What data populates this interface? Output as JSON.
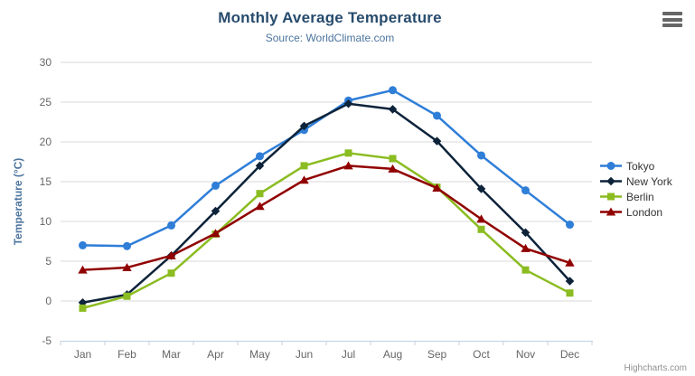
{
  "chart_data": {
    "type": "line",
    "title": "Monthly Average Temperature",
    "subtitle": "Source: WorldClimate.com",
    "credit": "Highcharts.com",
    "xlabel": "",
    "ylabel": "Temperature (°C)",
    "ylim": [
      -5,
      30
    ],
    "ytick_interval": 5,
    "grid": true,
    "legend_position": "right",
    "categories": [
      "Jan",
      "Feb",
      "Mar",
      "Apr",
      "May",
      "Jun",
      "Jul",
      "Aug",
      "Sep",
      "Oct",
      "Nov",
      "Dec"
    ],
    "series": [
      {
        "name": "Tokyo",
        "color": "#2f7ed8",
        "marker": "circle",
        "values": [
          7.0,
          6.9,
          9.5,
          14.5,
          18.2,
          21.5,
          25.2,
          26.5,
          23.3,
          18.3,
          13.9,
          9.6
        ]
      },
      {
        "name": "New York",
        "color": "#0d233a",
        "marker": "diamond",
        "values": [
          -0.2,
          0.8,
          5.7,
          11.3,
          17.0,
          22.0,
          24.8,
          24.1,
          20.1,
          14.1,
          8.6,
          2.5
        ]
      },
      {
        "name": "Berlin",
        "color": "#8bbc21",
        "marker": "square",
        "values": [
          -0.9,
          0.6,
          3.5,
          8.4,
          13.5,
          17.0,
          18.6,
          17.9,
          14.3,
          9.0,
          3.9,
          1.0
        ]
      },
      {
        "name": "London",
        "color": "#910000",
        "marker": "triangle",
        "values": [
          3.9,
          4.2,
          5.7,
          8.5,
          11.9,
          15.2,
          17.0,
          16.6,
          14.2,
          10.3,
          6.6,
          4.8
        ]
      }
    ],
    "colors": {
      "title_text": "#274b6d",
      "subtitle_text": "#4d759e",
      "axis_line": "#c0d0e0",
      "grid_line": "#d8d8d8",
      "tick_label": "#666666",
      "legend_label": "#333333"
    }
  }
}
